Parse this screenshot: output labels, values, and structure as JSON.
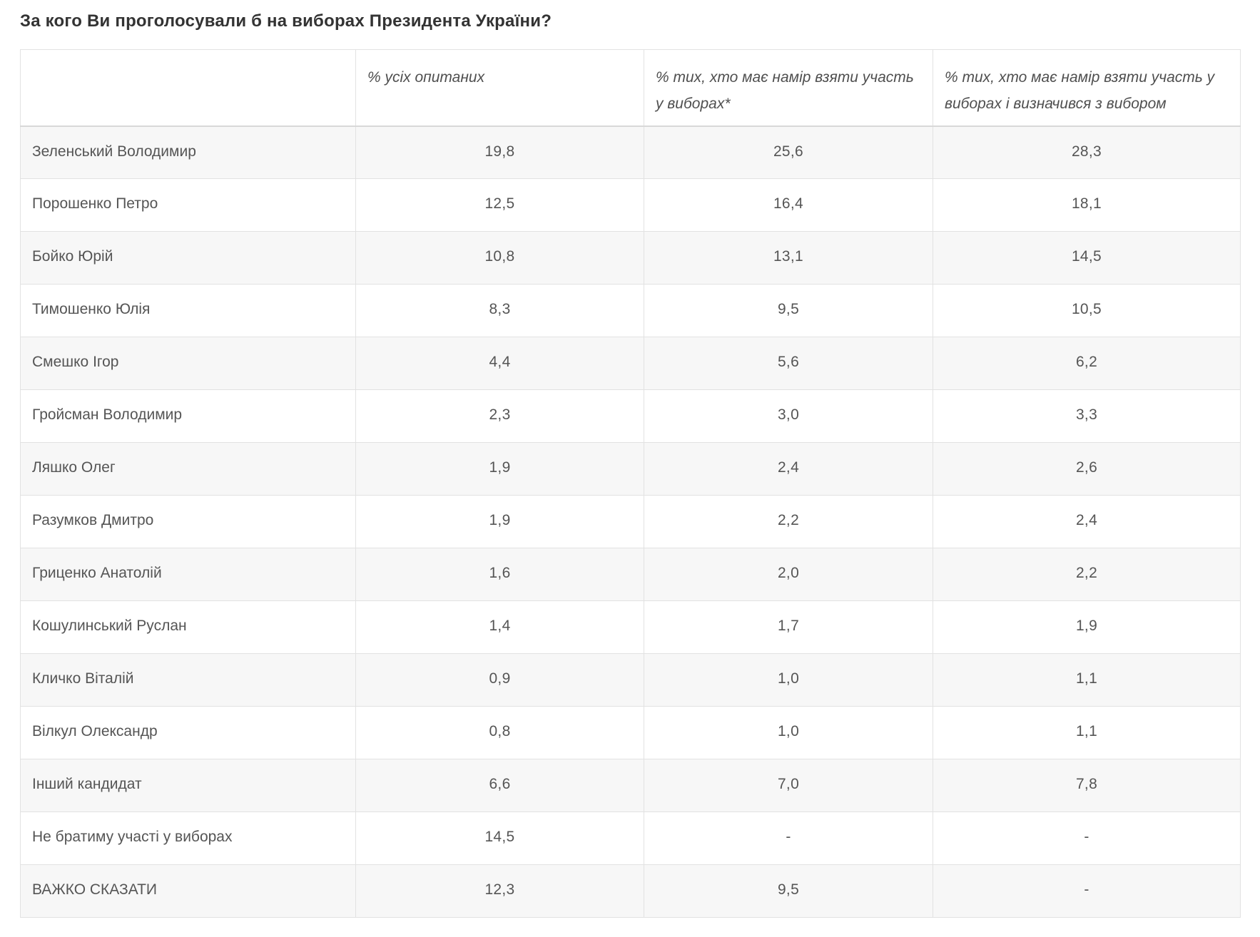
{
  "page": {
    "title": "За кого Ви проголосували б на виборах Президента України?"
  },
  "table": {
    "columns": {
      "candidate": "",
      "pct_all": "% усіх опитаних",
      "pct_intend": "% тих, хто має намір взяти участь у виборах*",
      "pct_decided": "% тих, хто має намір взяти участь у виборах і визначився з вибором"
    },
    "rows": [
      {
        "name": "Зеленський Володимир",
        "pct_all": "19,8",
        "pct_intend": "25,6",
        "pct_decided": "28,3"
      },
      {
        "name": "Порошенко Петро",
        "pct_all": "12,5",
        "pct_intend": "16,4",
        "pct_decided": "18,1"
      },
      {
        "name": "Бойко Юрій",
        "pct_all": "10,8",
        "pct_intend": "13,1",
        "pct_decided": "14,5"
      },
      {
        "name": "Тимошенко Юлія",
        "pct_all": "8,3",
        "pct_intend": "9,5",
        "pct_decided": "10,5"
      },
      {
        "name": "Смешко Ігор",
        "pct_all": "4,4",
        "pct_intend": "5,6",
        "pct_decided": "6,2"
      },
      {
        "name": "Гройсман Володимир",
        "pct_all": "2,3",
        "pct_intend": "3,0",
        "pct_decided": "3,3"
      },
      {
        "name": "Ляшко Олег",
        "pct_all": "1,9",
        "pct_intend": "2,4",
        "pct_decided": "2,6"
      },
      {
        "name": "Разумков Дмитро",
        "pct_all": "1,9",
        "pct_intend": "2,2",
        "pct_decided": "2,4"
      },
      {
        "name": "Гриценко Анатолій",
        "pct_all": "1,6",
        "pct_intend": "2,0",
        "pct_decided": "2,2"
      },
      {
        "name": "Кошулинський Руслан",
        "pct_all": "1,4",
        "pct_intend": "1,7",
        "pct_decided": "1,9"
      },
      {
        "name": "Кличко Віталій",
        "pct_all": "0,9",
        "pct_intend": "1,0",
        "pct_decided": "1,1"
      },
      {
        "name": "Вілкул Олександр",
        "pct_all": "0,8",
        "pct_intend": "1,0",
        "pct_decided": "1,1"
      },
      {
        "name": "Інший кандидат",
        "pct_all": "6,6",
        "pct_intend": "7,0",
        "pct_decided": "7,8"
      },
      {
        "name": "Не братиму участі у виборах",
        "pct_all": "14,5",
        "pct_intend": "-",
        "pct_decided": "-"
      },
      {
        "name": "ВАЖКО СКАЗАТИ",
        "pct_all": "12,3",
        "pct_intend": "9,5",
        "pct_decided": "-"
      }
    ]
  },
  "colors": {
    "row_alt_background": "#f7f7f7",
    "border": "#e2e2e2",
    "header_separator": "#d8d8d8",
    "title_text": "#333333",
    "body_text": "#555555"
  }
}
